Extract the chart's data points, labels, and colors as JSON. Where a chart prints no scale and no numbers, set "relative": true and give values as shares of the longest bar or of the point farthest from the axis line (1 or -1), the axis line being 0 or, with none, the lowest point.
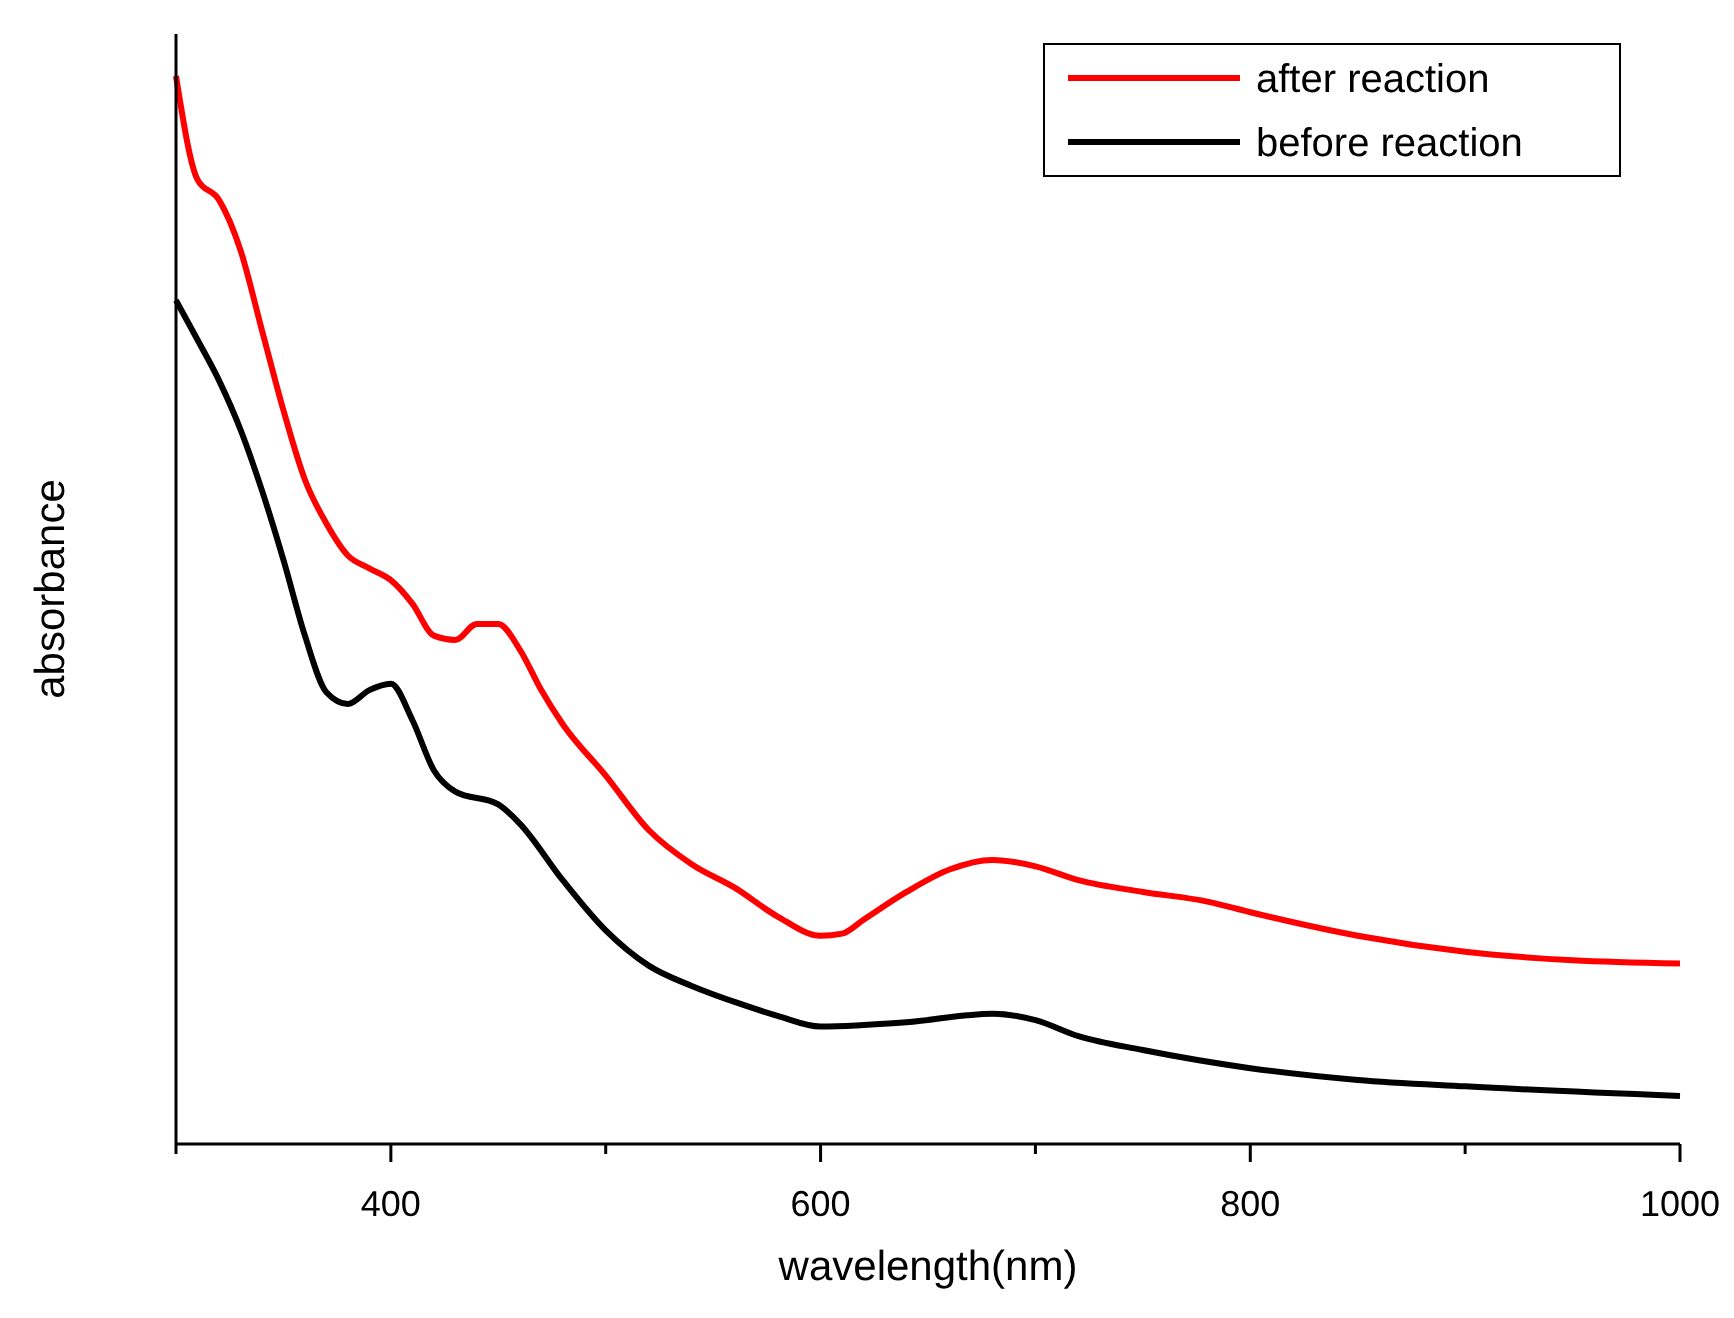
{
  "chart_data": {
    "type": "line",
    "xlabel": "wavelength(nm)",
    "ylabel": "absorbance",
    "relative": true,
    "xlim": [
      300,
      1000
    ],
    "xticks": [
      {
        "value": 300,
        "label": null
      },
      400,
      {
        "value": 500,
        "label": null
      },
      600,
      {
        "value": 700,
        "label": null
      },
      800,
      {
        "value": 900,
        "label": null
      },
      1000
    ],
    "legend": "top right",
    "grid": false,
    "marker": "none",
    "line_style": "solid",
    "series": [
      {
        "name": "after reaction",
        "color": "#ff0000",
        "x": [
          300,
          310,
          320,
          330,
          340,
          350,
          360,
          370,
          380,
          390,
          400,
          410,
          420,
          430,
          440,
          450,
          460,
          470,
          480,
          500,
          520,
          540,
          560,
          580,
          600,
          610,
          620,
          640,
          660,
          680,
          700,
          720,
          750,
          780,
          800,
          850,
          900,
          950,
          1000
        ],
        "values": [
          1.0,
          0.903,
          0.884,
          0.837,
          0.762,
          0.687,
          0.622,
          0.581,
          0.551,
          0.539,
          0.528,
          0.506,
          0.476,
          0.472,
          0.487,
          0.487,
          0.463,
          0.425,
          0.393,
          0.345,
          0.294,
          0.262,
          0.24,
          0.213,
          0.195,
          0.197,
          0.21,
          0.236,
          0.257,
          0.266,
          0.26,
          0.247,
          0.236,
          0.227,
          0.217,
          0.195,
          0.18,
          0.172,
          0.169
        ]
      },
      {
        "name": "before reaction",
        "color": "#000000",
        "x": [
          300,
          310,
          320,
          330,
          340,
          350,
          360,
          370,
          380,
          390,
          400,
          410,
          420,
          430,
          450,
          460,
          480,
          500,
          520,
          540,
          560,
          580,
          600,
          640,
          680,
          700,
          720,
          750,
          800,
          850,
          900,
          1000
        ],
        "values": [
          0.79,
          0.753,
          0.715,
          0.669,
          0.612,
          0.547,
          0.476,
          0.423,
          0.412,
          0.425,
          0.431,
          0.397,
          0.35,
          0.33,
          0.318,
          0.3,
          0.247,
          0.2,
          0.167,
          0.148,
          0.133,
          0.12,
          0.11,
          0.114,
          0.122,
          0.116,
          0.101,
          0.088,
          0.071,
          0.06,
          0.054,
          0.045
        ]
      }
    ]
  }
}
